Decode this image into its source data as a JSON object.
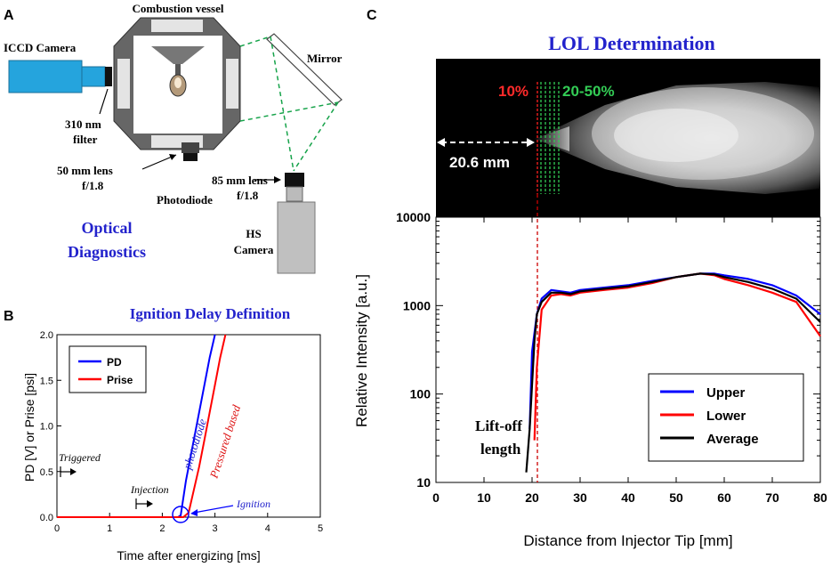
{
  "panel_a": {
    "letter": "A",
    "combustion_vessel": "Combustion vessel",
    "iccd_camera": "ICCD Camera",
    "mirror": "Mirror",
    "filter_line1": "310 nm",
    "filter_line2": "filter",
    "lens50_line1": "50 mm lens",
    "lens50_line2": "f/1.8",
    "photodiode": "Photodiode",
    "lens85_line1": "85 mm lens",
    "lens85_line2": "f/1.8",
    "hs_line1": "HS",
    "hs_line2": "Camera",
    "optical_line1": "Optical",
    "optical_line2": "Diagnostics"
  },
  "panel_b": {
    "letter": "B",
    "title": "Ignition Delay Definition",
    "ylabel": "PD [V] or Prise [psi]",
    "xlabel": "Time after energizing [ms]",
    "xticks": [
      "0",
      "1",
      "2",
      "3",
      "4",
      "5"
    ],
    "yticks": [
      "0.0",
      "0.5",
      "1.0",
      "1.5",
      "2.0"
    ],
    "legend": [
      {
        "name": "PD",
        "color": "#0000ff"
      },
      {
        "name": "Prise",
        "color": "#ff0000"
      }
    ],
    "ann_triggered": "Triggered",
    "ann_injection": "Injection",
    "ann_photodiode": "photodiode",
    "ann_pressured": "Pressured based",
    "ann_ignition": "Ignition"
  },
  "panel_c": {
    "letter": "C",
    "title": "LOL Determination",
    "label_10": "10%",
    "label_20_50": "20-50%",
    "label_distance": "20.6 mm",
    "lift_off_line1": "Lift-off",
    "lift_off_line2": "length"
  },
  "chart_data": [
    {
      "type": "line",
      "title": "Ignition Delay Definition",
      "xlabel": "Time after energizing [ms]",
      "ylabel": "PD [V] or Prise [psi]",
      "xlim": [
        0,
        5
      ],
      "ylim": [
        0,
        2
      ],
      "series": [
        {
          "name": "PD",
          "color": "#0000ff",
          "x": [
            0,
            0.8,
            1.5,
            2.3,
            2.35,
            2.45,
            2.6,
            2.75,
            2.9,
            3.0
          ],
          "y": [
            0,
            0,
            0,
            0,
            0.02,
            0.4,
            0.85,
            1.3,
            1.75,
            2.0
          ]
        },
        {
          "name": "Prise",
          "color": "#ff0000",
          "x": [
            0,
            1.5,
            2.4,
            2.5,
            2.6,
            2.7,
            2.8,
            2.9,
            3.0,
            3.1,
            3.2
          ],
          "y": [
            0,
            0,
            0,
            0.05,
            0.3,
            0.55,
            0.85,
            1.15,
            1.45,
            1.75,
            2.0
          ]
        }
      ]
    },
    {
      "type": "line",
      "title": "LOL Determination",
      "xlabel": "Distance from Injector Tip [mm]",
      "ylabel": "Relative Intensity [a.u.]",
      "xlim": [
        0,
        80
      ],
      "ylim": [
        10,
        10000
      ],
      "yscale": "log",
      "xticks": [
        "0",
        "10",
        "20",
        "30",
        "40",
        "50",
        "60",
        "70",
        "80"
      ],
      "yticks": [
        "10",
        "100",
        "1000",
        "10000"
      ],
      "lift_off_length_mm": 20.6,
      "series": [
        {
          "name": "Upper",
          "color": "#0000ff",
          "x": [
            19.5,
            20,
            21,
            22,
            24,
            26,
            28,
            30,
            35,
            40,
            45,
            50,
            55,
            58,
            60,
            65,
            70,
            75,
            80
          ],
          "y": [
            40,
            300,
            800,
            1200,
            1500,
            1450,
            1400,
            1500,
            1600,
            1700,
            1900,
            2100,
            2300,
            2300,
            2200,
            2000,
            1700,
            1300,
            800
          ]
        },
        {
          "name": "Lower",
          "color": "#ff0000",
          "x": [
            20.5,
            21,
            22,
            24,
            26,
            28,
            30,
            35,
            40,
            45,
            50,
            55,
            58,
            60,
            65,
            70,
            75,
            80
          ],
          "y": [
            30,
            200,
            900,
            1300,
            1350,
            1300,
            1400,
            1500,
            1600,
            1800,
            2100,
            2300,
            2200,
            2000,
            1700,
            1400,
            1100,
            450
          ]
        },
        {
          "name": "Average",
          "color": "#000000",
          "x": [
            18.8,
            19.5,
            20.5,
            21,
            22,
            24,
            26,
            28,
            30,
            35,
            40,
            45,
            50,
            55,
            58,
            60,
            65,
            70,
            75,
            80
          ],
          "y": [
            13,
            40,
            400,
            800,
            1100,
            1400,
            1400,
            1350,
            1450,
            1550,
            1650,
            1850,
            2100,
            2300,
            2250,
            2100,
            1850,
            1550,
            1200,
            650
          ]
        }
      ]
    }
  ]
}
